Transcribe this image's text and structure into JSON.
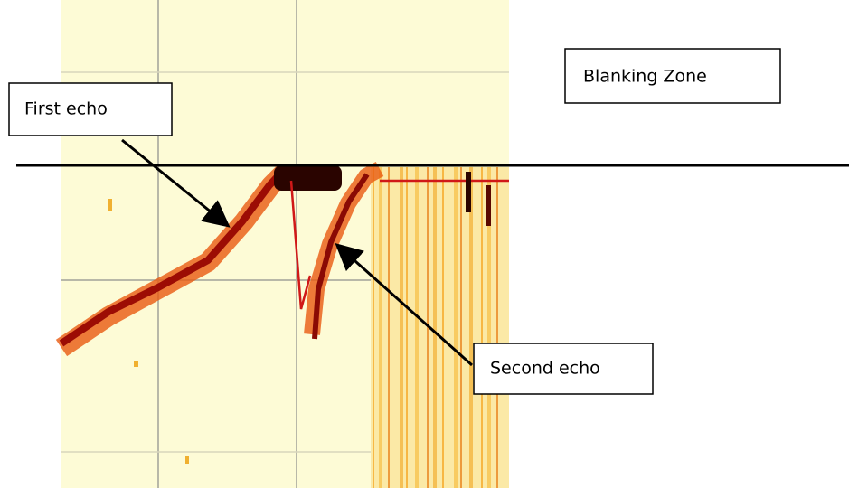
{
  "labels": {
    "blanking_zone": "Blanking Zone",
    "first_echo": "First echo",
    "second_echo": "Second echo"
  }
}
